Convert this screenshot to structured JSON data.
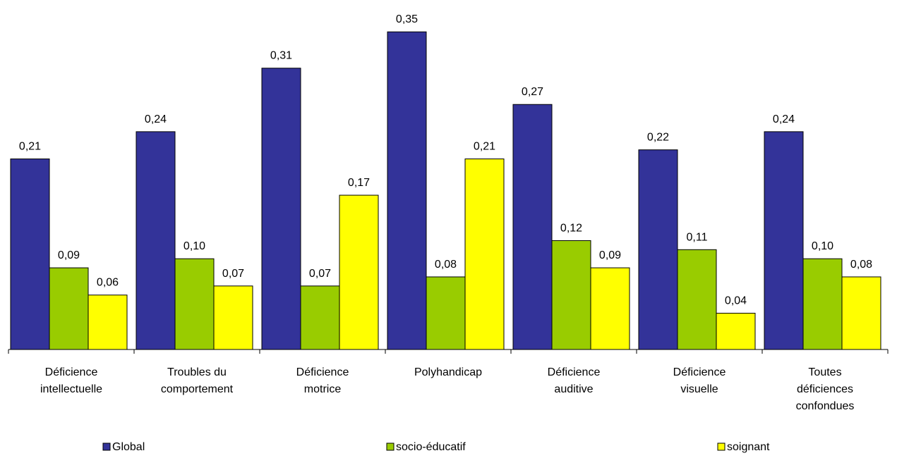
{
  "chart_data": {
    "type": "bar",
    "categories": [
      [
        "Déficience",
        "intellectuelle"
      ],
      [
        "Troubles du",
        "comportement"
      ],
      [
        "Déficience",
        "motrice"
      ],
      [
        "Polyhandicap"
      ],
      [
        "Déficience",
        "auditive"
      ],
      [
        "Déficience",
        "visuelle"
      ],
      [
        "Toutes",
        "déficiences",
        "confondues"
      ]
    ],
    "series": [
      {
        "name": "Global",
        "color": "#333399",
        "values": [
          0.21,
          0.24,
          0.31,
          0.35,
          0.27,
          0.22,
          0.24
        ],
        "labels": [
          "0,21",
          "0,24",
          "0,31",
          "0,35",
          "0,27",
          "0,22",
          "0,24"
        ]
      },
      {
        "name": "socio-éducatif",
        "color": "#99cc00",
        "values": [
          0.09,
          0.1,
          0.07,
          0.08,
          0.12,
          0.11,
          0.1
        ],
        "labels": [
          "0,09",
          "0,10",
          "0,07",
          "0,08",
          "0,12",
          "0,11",
          "0,10"
        ]
      },
      {
        "name": "soignant",
        "color": "#ffff00",
        "values": [
          0.06,
          0.07,
          0.17,
          0.21,
          0.09,
          0.04,
          0.08
        ],
        "labels": [
          "0,06",
          "0,07",
          "0,17",
          "0,21",
          "0,09",
          "0,04",
          "0,08"
        ]
      }
    ],
    "ylim": [
      0,
      0.4
    ],
    "grid": false,
    "legend_position": "bottom",
    "title": "",
    "xlabel": "",
    "ylabel": ""
  }
}
